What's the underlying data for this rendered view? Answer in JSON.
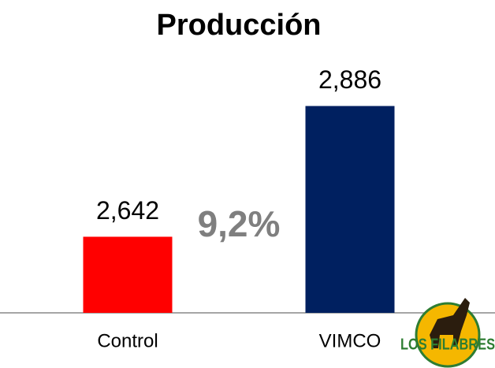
{
  "chart_data": {
    "type": "bar",
    "title": "Producción",
    "categories": [
      "Control",
      "VIMCO"
    ],
    "values": [
      2642,
      2886
    ],
    "value_labels": [
      "2,642",
      "2,886"
    ],
    "colors": [
      "#ff0000",
      "#002060"
    ],
    "ylim": [
      2500,
      3000
    ],
    "annotation": "9,2%",
    "logo": "LOS FILABRES"
  }
}
